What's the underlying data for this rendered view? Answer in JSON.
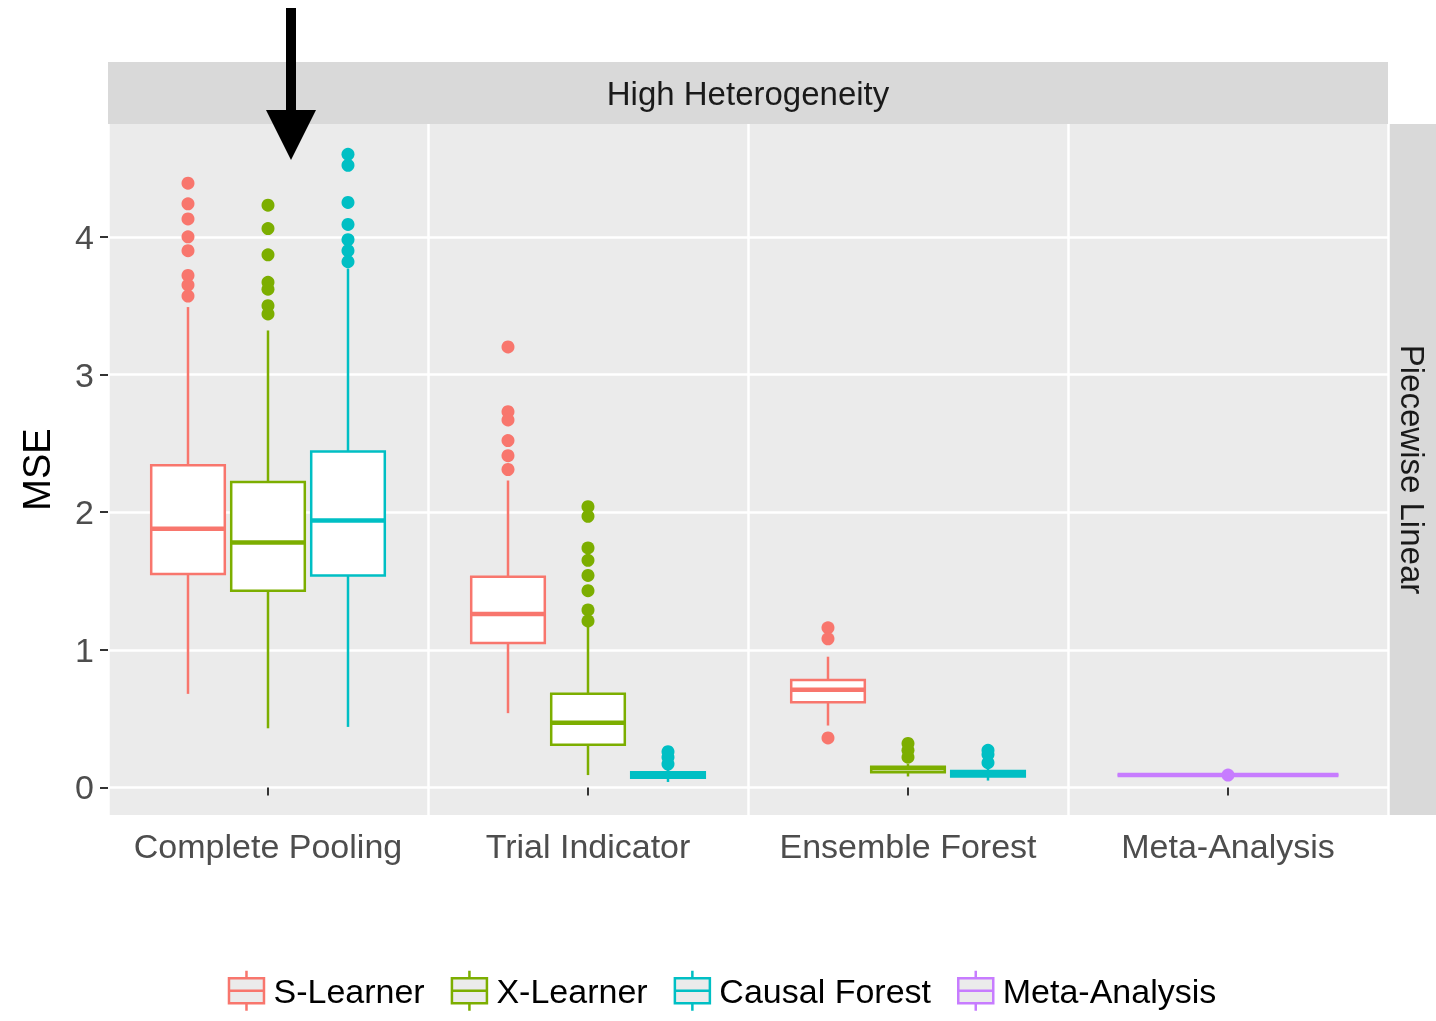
{
  "chart_data": {
    "type": "box",
    "title": "High Heterogeneity",
    "annotations": [
      "Piecewise Linear"
    ],
    "ylabel": "MSE",
    "categories": [
      "Complete Pooling",
      "Trial Indicator",
      "Ensemble Forest",
      "Meta-Analysis"
    ],
    "ylim": [
      -0.2,
      4.82
    ],
    "yticks": [
      0,
      1,
      2,
      3,
      4
    ],
    "grid": true,
    "legend": "bottom",
    "series": [
      {
        "name": "S-Learner",
        "color": "#f8766d",
        "boxes": [
          {
            "low": 0.68,
            "q1": 1.55,
            "median": 1.88,
            "q3": 2.34,
            "high": 3.49,
            "outliers": [
              4.39,
              4.24,
              4.13,
              4.0,
              3.9,
              3.72,
              3.65,
              3.57
            ]
          },
          {
            "low": 0.54,
            "q1": 1.05,
            "median": 1.26,
            "q3": 1.53,
            "high": 2.23,
            "outliers": [
              3.2,
              2.73,
              2.67,
              2.52,
              2.41,
              2.31
            ]
          },
          {
            "low": 0.45,
            "q1": 0.62,
            "median": 0.71,
            "q3": 0.78,
            "high": 0.95,
            "outliers": [
              1.16,
              1.08,
              0.36
            ]
          },
          null
        ]
      },
      {
        "name": "X-Learner",
        "color": "#7cae00",
        "boxes": [
          {
            "low": 0.43,
            "q1": 1.43,
            "median": 1.78,
            "q3": 2.22,
            "high": 3.32,
            "outliers": [
              4.23,
              4.06,
              3.87,
              3.67,
              3.62,
              3.5,
              3.44
            ]
          },
          {
            "low": 0.09,
            "q1": 0.31,
            "median": 0.47,
            "q3": 0.68,
            "high": 1.19,
            "outliers": [
              2.04,
              1.97,
              1.74,
              1.65,
              1.54,
              1.43,
              1.29,
              1.21
            ]
          },
          {
            "low": 0.08,
            "q1": 0.11,
            "median": 0.14,
            "q3": 0.15,
            "high": 0.17,
            "outliers": [
              0.22,
              0.27,
              0.32
            ]
          },
          null
        ]
      },
      {
        "name": "Causal Forest",
        "color": "#00bfc4",
        "boxes": [
          {
            "low": 0.44,
            "q1": 1.54,
            "median": 1.94,
            "q3": 2.44,
            "high": 3.77,
            "outliers": [
              4.6,
              4.52,
              4.25,
              4.09,
              3.98,
              3.9,
              3.82
            ]
          },
          {
            "low": 0.04,
            "q1": 0.07,
            "median": 0.09,
            "q3": 0.11,
            "high": 0.13,
            "outliers": [
              0.17,
              0.22,
              0.26
            ]
          },
          {
            "low": 0.05,
            "q1": 0.08,
            "median": 0.1,
            "q3": 0.12,
            "high": 0.14,
            "outliers": [
              0.18,
              0.24,
              0.27
            ]
          },
          null
        ]
      },
      {
        "name": "Meta-Analysis",
        "color": "#c77cff",
        "boxes": [
          null,
          null,
          null,
          {
            "low": 0.09,
            "q1": 0.09,
            "median": 0.09,
            "q3": 0.09,
            "high": 0.09,
            "outliers": [
              0.09
            ]
          }
        ]
      }
    ]
  }
}
